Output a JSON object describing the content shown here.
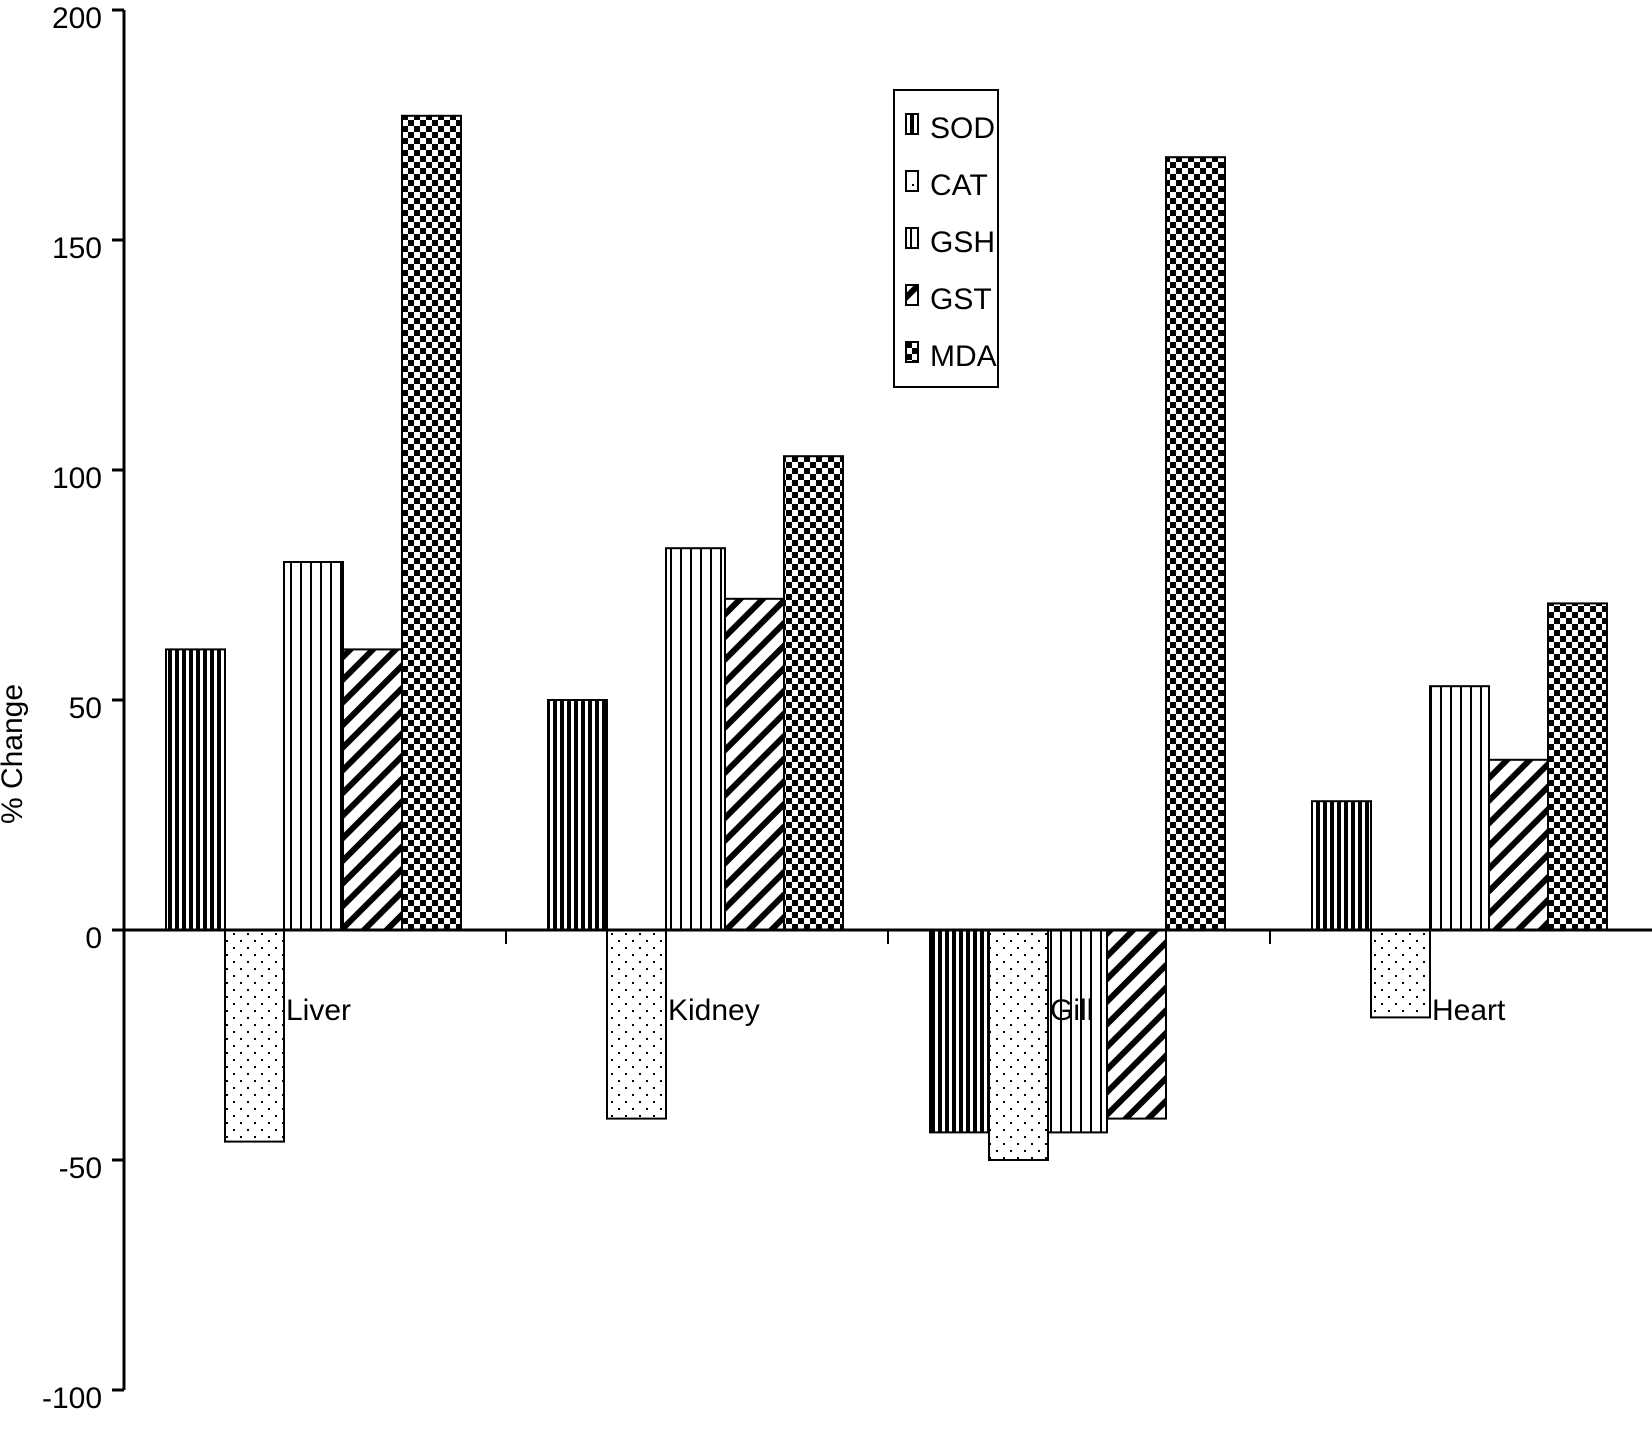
{
  "chart_data": {
    "type": "bar",
    "y_label": "% Change",
    "categories": [
      "Liver",
      "Kidney",
      "Gill",
      "Heart"
    ],
    "series": [
      {
        "name": "SOD",
        "color": "#000000",
        "pattern": "dense-vertical",
        "values": [
          61,
          50,
          -44,
          28
        ]
      },
      {
        "name": "CAT",
        "color": "#000000",
        "pattern": "dots",
        "values": [
          -46,
          -41,
          -50,
          -19
        ]
      },
      {
        "name": "GSH",
        "color": "#000000",
        "pattern": "sparse-vertical",
        "values": [
          80,
          83,
          -44,
          53
        ]
      },
      {
        "name": "GST",
        "color": "#000000",
        "pattern": "diagonal",
        "values": [
          61,
          72,
          -41,
          37
        ]
      },
      {
        "name": "MDA",
        "color": "#000000",
        "pattern": "checker",
        "values": [
          177,
          103,
          168,
          71
        ]
      }
    ],
    "ylim": [
      -100,
      200
    ],
    "yticks": [
      -100,
      -50,
      0,
      50,
      100,
      150,
      200
    ],
    "legend": "top-center",
    "grid": false
  }
}
